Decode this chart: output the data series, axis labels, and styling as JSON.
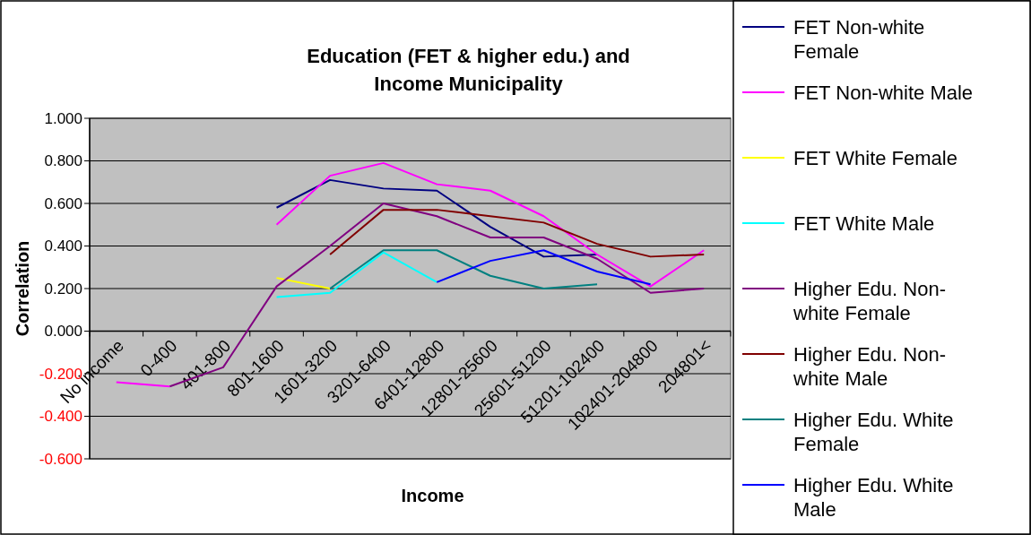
{
  "chart_data": {
    "type": "line",
    "title": "Education (FET & higher edu.) and Income Municipality",
    "xlabel": "Income",
    "ylabel": "Correlation",
    "categories": [
      "No income",
      "0-400",
      "401-800",
      "801-1600",
      "1601-3200",
      "3201-6400",
      "6401-12800",
      "12801-25600",
      "25601-51200",
      "51201-102400",
      "102401-204800",
      "204801<"
    ],
    "series": [
      {
        "name": "FET Non-white Female",
        "color": "#000080",
        "values": [
          null,
          null,
          null,
          0.58,
          0.71,
          0.67,
          0.66,
          0.49,
          0.35,
          0.36,
          null,
          null
        ]
      },
      {
        "name": "FET Non-white Male",
        "color": "#ff00ff",
        "values": [
          -0.24,
          -0.26,
          null,
          0.5,
          0.73,
          0.79,
          0.69,
          0.66,
          0.54,
          0.36,
          0.21,
          0.38
        ]
      },
      {
        "name": "FET White Female",
        "color": "#ffff00",
        "values": [
          null,
          null,
          null,
          0.25,
          0.2,
          null,
          null,
          null,
          null,
          null,
          null,
          null
        ]
      },
      {
        "name": "FET White Male",
        "color": "#00ffff",
        "values": [
          null,
          null,
          null,
          0.16,
          0.18,
          0.37,
          0.23,
          null,
          null,
          null,
          null,
          null
        ]
      },
      {
        "name": "Higher Edu. Non-white Female",
        "color": "#800080",
        "values": [
          null,
          -0.26,
          -0.17,
          0.21,
          0.4,
          0.6,
          0.54,
          0.44,
          0.44,
          0.34,
          0.18,
          0.2
        ]
      },
      {
        "name": "Higher Edu. Non-white Male",
        "color": "#800000",
        "values": [
          null,
          null,
          null,
          null,
          0.36,
          0.57,
          0.57,
          0.54,
          0.51,
          0.41,
          0.35,
          0.36
        ]
      },
      {
        "name": "Higher Edu. White Female",
        "color": "#008080",
        "values": [
          null,
          null,
          null,
          null,
          0.2,
          0.38,
          0.38,
          0.26,
          0.2,
          0.22,
          null,
          null
        ]
      },
      {
        "name": "Higher Edu. White Male",
        "color": "#0000ff",
        "values": [
          null,
          null,
          null,
          null,
          null,
          null,
          0.23,
          0.33,
          0.38,
          0.28,
          0.22,
          null
        ]
      }
    ],
    "ylim": [
      -0.6,
      1.0
    ],
    "yticks": [
      {
        "value": -0.6,
        "label": "-0.600"
      },
      {
        "value": -0.4,
        "label": "-0.400"
      },
      {
        "value": -0.2,
        "label": "-0.200"
      },
      {
        "value": 0,
        "label": "0.000"
      },
      {
        "value": 0.2,
        "label": "0.200"
      },
      {
        "value": 0.4,
        "label": "0.400"
      },
      {
        "value": 0.6,
        "label": "0.600"
      },
      {
        "value": 0.8,
        "label": "0.800"
      },
      {
        "value": 1.0,
        "label": "1.000"
      }
    ],
    "grid": "y",
    "legend": "right"
  }
}
